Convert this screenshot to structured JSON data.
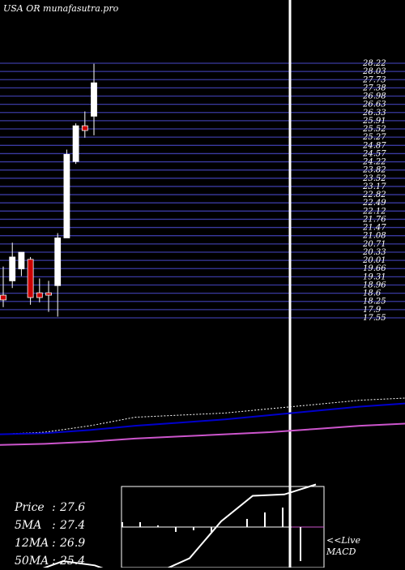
{
  "site_title": "USA OR munafasutra.pro",
  "info": [
    {
      "label": "Price",
      "value": "27.6"
    },
    {
      "label": "5MA",
      "value": "27.4"
    },
    {
      "label": "12MA",
      "value": "26.9"
    },
    {
      "label": "50MA",
      "value": "25.4"
    }
  ],
  "live_label": "<<Live",
  "macd_label": "MACD",
  "colors": {
    "background": "#000000",
    "grid": "#3a3aa0",
    "bull": "#ffffff",
    "bear": "#cc0000",
    "ma_blue": "#0000cc",
    "ma_magenta": "#cc55cc"
  },
  "chart_data": {
    "type": "candlestick",
    "price_levels": [
      "28.22",
      "28.03",
      "27.73",
      "27.38",
      "26.98",
      "26.63",
      "26.33",
      "25.91",
      "25.52",
      "25.27",
      "24.87",
      "24.57",
      "24.22",
      "23.82",
      "23.52",
      "23.17",
      "22.82",
      "22.49",
      "22.12",
      "21.76",
      "21.47",
      "21.08",
      "20.71",
      "20.33",
      "20.01",
      "19.66",
      "19.31",
      "18.96",
      "18.6",
      "18.25",
      "17.9",
      "17.55"
    ],
    "ylim": [
      17.55,
      28.22
    ],
    "candles": [
      {
        "o": 18.5,
        "h": 19.7,
        "l": 18.0,
        "c": 18.3
      },
      {
        "o": 19.1,
        "h": 20.7,
        "l": 18.8,
        "c": 20.1
      },
      {
        "o": 19.6,
        "h": 20.3,
        "l": 19.3,
        "c": 20.3
      },
      {
        "o": 20.0,
        "h": 20.1,
        "l": 18.1,
        "c": 18.4
      },
      {
        "o": 18.6,
        "h": 19.2,
        "l": 18.2,
        "c": 18.4
      },
      {
        "o": 18.6,
        "h": 19.1,
        "l": 17.8,
        "c": 18.5
      },
      {
        "o": 18.9,
        "h": 21.1,
        "l": 17.6,
        "c": 20.9
      },
      {
        "o": 20.9,
        "h": 24.6,
        "l": 20.9,
        "c": 24.4
      },
      {
        "o": 24.1,
        "h": 25.7,
        "l": 24.0,
        "c": 25.6
      },
      {
        "o": 25.6,
        "h": 26.2,
        "l": 25.1,
        "c": 25.4
      },
      {
        "o": 26.0,
        "h": 28.2,
        "l": 25.2,
        "c": 27.4
      }
    ],
    "ma_lines": [
      {
        "color": "#ffffff",
        "dotted": true,
        "values": [
          22.0,
          22.1,
          22.4,
          22.8,
          22.9,
          23.0,
          23.2,
          23.4,
          23.6,
          23.7
        ]
      },
      {
        "color": "#0000cc",
        "dotted": false,
        "values": [
          22.0,
          22.05,
          22.2,
          22.4,
          22.55,
          22.7,
          22.9,
          23.1,
          23.3,
          23.45
        ]
      },
      {
        "color": "#cc55cc",
        "dotted": false,
        "values": [
          21.5,
          21.55,
          21.65,
          21.8,
          21.9,
          22.0,
          22.1,
          22.25,
          22.4,
          22.5
        ]
      }
    ],
    "macd_line": [
      -1.6,
      -1.6,
      -1.2,
      -1.35,
      -1.75,
      -1.6,
      -1.1,
      0.2,
      1.1,
      1.15,
      1.5
    ],
    "macd_histogram": [
      0.3,
      0.3,
      0.1,
      -0.3,
      -0.2,
      -0.3,
      0.0,
      0.5,
      0.9,
      1.2,
      -2.1
    ],
    "grid": true
  }
}
